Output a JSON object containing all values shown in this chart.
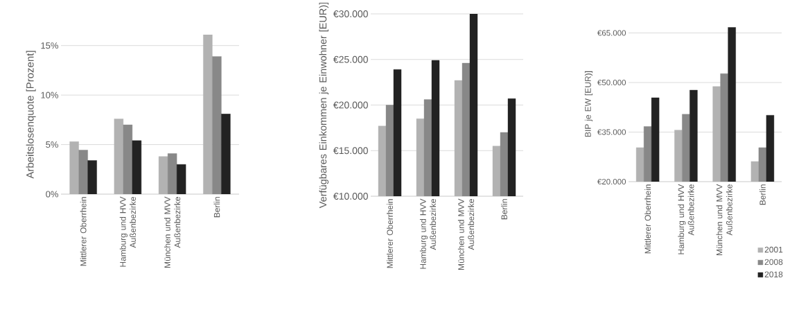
{
  "chart_data": [
    {
      "type": "bar",
      "ylabel": "Arbeitslosenquote [Prozent]",
      "categories": [
        "Mittlerer Oberrhein",
        "Hamburg und HVV Außenbezirke",
        "München und MVV Außenbezirke",
        "Berlin"
      ],
      "series": [
        {
          "color": "#b2b2b2",
          "values": [
            5.3,
            7.6,
            3.8,
            16.1
          ]
        },
        {
          "color": "#888888",
          "values": [
            4.45,
            7.0,
            4.1,
            13.9
          ]
        },
        {
          "color": "#222222",
          "values": [
            3.4,
            5.4,
            3.0,
            8.1
          ]
        }
      ],
      "ylim": [
        0,
        16.1
      ],
      "yticks": [
        {
          "value": 0,
          "label": "0%"
        },
        {
          "value": 5,
          "label": "5%"
        },
        {
          "value": 10,
          "label": "10%"
        },
        {
          "value": 15,
          "label": "15%"
        }
      ],
      "grid": "y"
    },
    {
      "type": "bar",
      "ylabel": "Verfügbares Einkommen je Einwohner [EUR)]",
      "categories": [
        "Mittlerer Oberrhein",
        "Hamburg und HVV Außenbezirke",
        "München und MVV Außenbezirke",
        "Berlin"
      ],
      "series": [
        {
          "color": "#b2b2b2",
          "values": [
            17700,
            18500,
            22700,
            15500
          ]
        },
        {
          "color": "#888888",
          "values": [
            20000,
            20600,
            24600,
            17000
          ]
        },
        {
          "color": "#222222",
          "values": [
            23900,
            24900,
            30000,
            20700
          ]
        }
      ],
      "ylim": [
        10000,
        30000
      ],
      "yticks": [
        {
          "value": 10000,
          "label": "€10.000"
        },
        {
          "value": 15000,
          "label": "€15.000"
        },
        {
          "value": 20000,
          "label": "€20.000"
        },
        {
          "value": 25000,
          "label": "€25.000"
        },
        {
          "value": 30000,
          "label": "€30.000"
        }
      ],
      "grid": "y"
    },
    {
      "type": "bar",
      "ylabel": "BIP je EW [EUR)]",
      "categories": [
        "Mittlerer Oberrhein",
        "Hamburg und HVV Außenbezirke",
        "München und MVV Außenbezirke",
        "Berlin"
      ],
      "series": [
        {
          "name": "2001",
          "color": "#b2b2b2",
          "values": [
            30300,
            35600,
            48800,
            26100
          ]
        },
        {
          "name": "2008",
          "color": "#888888",
          "values": [
            36700,
            40400,
            52700,
            30300
          ]
        },
        {
          "name": "2018",
          "color": "#222222",
          "values": [
            45400,
            47700,
            66700,
            40100
          ]
        }
      ],
      "ylim": [
        20000,
        67000
      ],
      "yticks": [
        {
          "value": 20000,
          "label": "€20.000"
        },
        {
          "value": 35000,
          "label": "€35.000"
        },
        {
          "value": 50000,
          "label": "€50.000"
        },
        {
          "value": 65000,
          "label": "€65.000"
        }
      ],
      "grid": "y",
      "legend": "bottom right"
    }
  ]
}
